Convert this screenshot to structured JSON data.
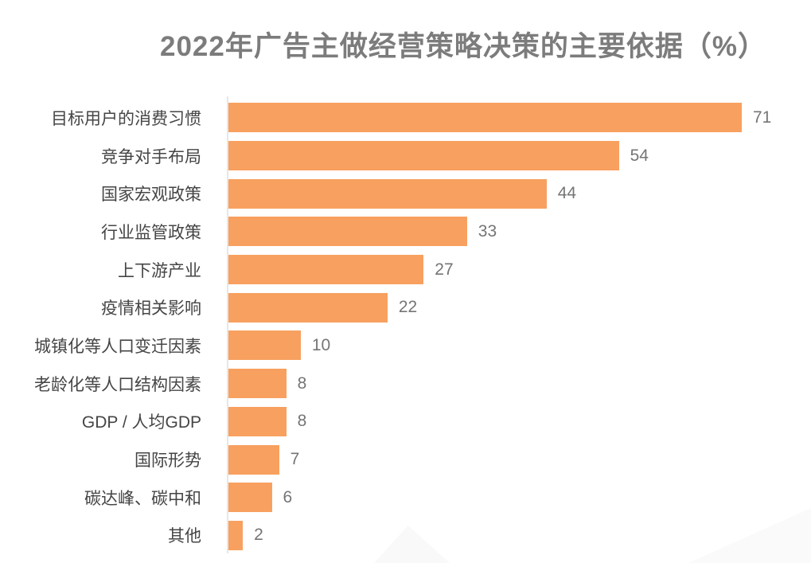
{
  "title": "2022年广告主做经营策略决策的主要依据（%）",
  "colors": {
    "bar": "#f8a05f",
    "title_text": "#7c7c7c",
    "category_text": "#454545",
    "value_text": "#757575",
    "axis_line": "#e7e7e7"
  },
  "chart_data": {
    "type": "bar",
    "orientation": "horizontal",
    "title": "2022年广告主做经营策略决策的主要依据（%）",
    "unit": "%",
    "categories": [
      "目标用户的消费习惯",
      "竞争对手布局",
      "国家宏观政策",
      "行业监管政策",
      "上下游产业",
      "疫情相关影响",
      "城镇化等人口变迁因素",
      "老龄化等人口结构因素",
      "GDP / 人均GDP",
      "国际形势",
      "碳达峰、碳中和",
      "其他"
    ],
    "values": [
      71,
      54,
      44,
      33,
      27,
      22,
      10,
      8,
      8,
      7,
      6,
      2
    ],
    "xlim": [
      0,
      71
    ],
    "grid": false,
    "legend": false,
    "value_labels_shown": true
  }
}
